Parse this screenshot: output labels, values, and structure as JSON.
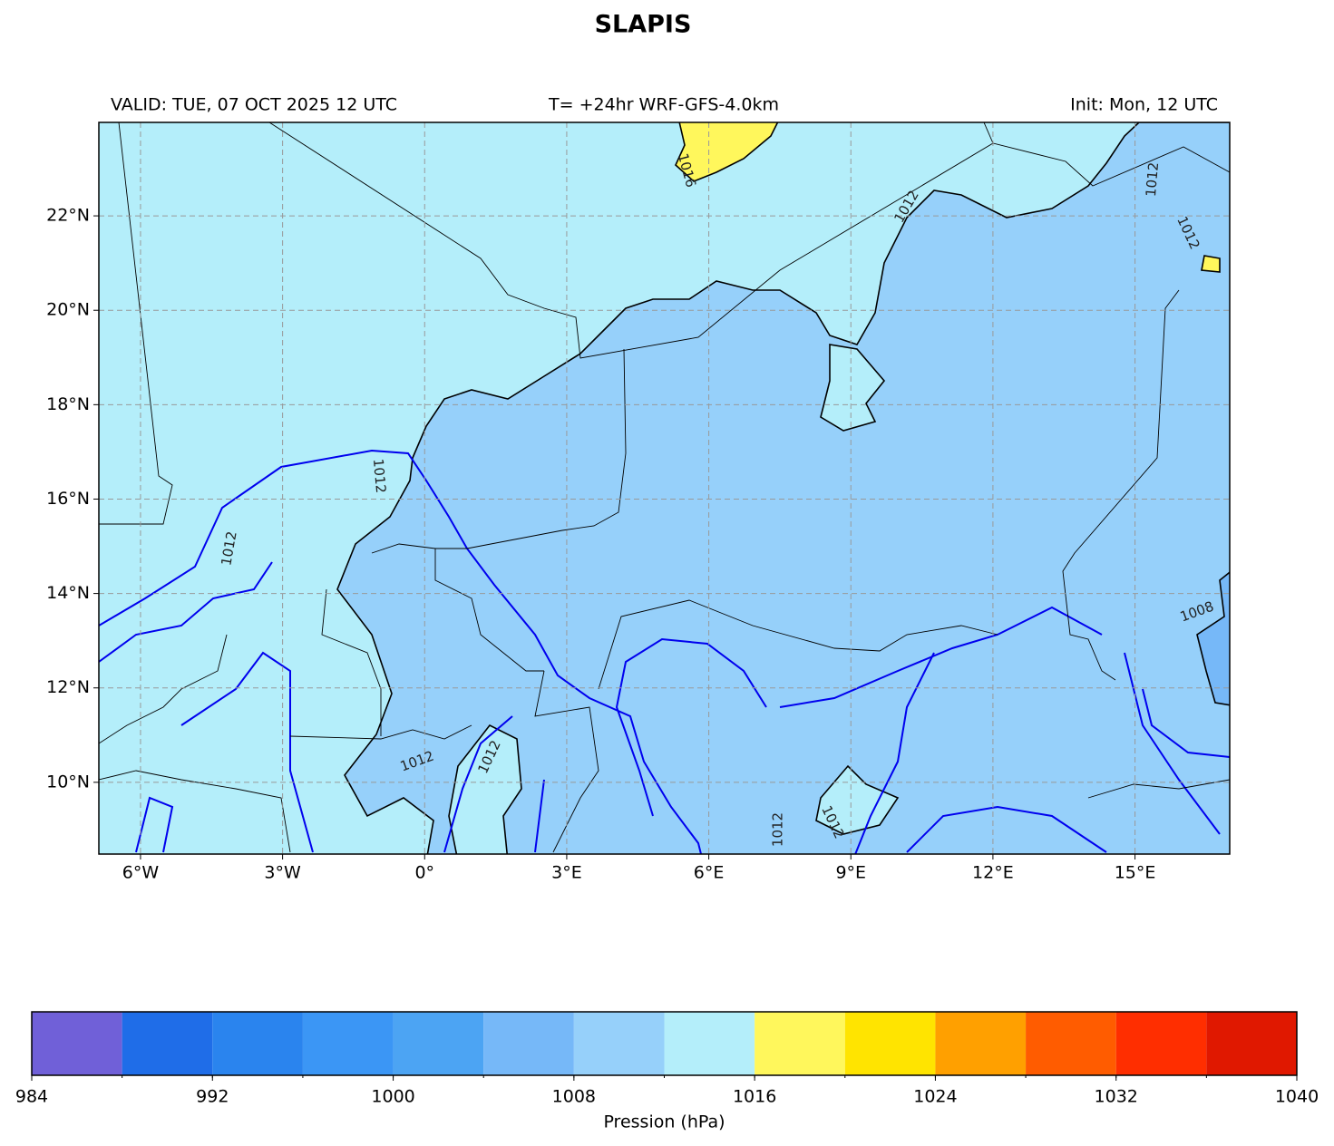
{
  "chart_data": {
    "type": "filled-contour-map",
    "title": "SLAPIS",
    "valid_label": "VALID: TUE, 07 OCT 2025 12 UTC",
    "run_label": "T= +24hr WRF-GFS-4.0km",
    "init_label": "Init: Mon, 12 UTC",
    "xlim": [
      -6.88,
      17.0
    ],
    "ylim": [
      8.48,
      23.98
    ],
    "xticks": [
      {
        "value": -6,
        "label": "6°W"
      },
      {
        "value": -3,
        "label": "3°W"
      },
      {
        "value": 0,
        "label": "0°"
      },
      {
        "value": 3,
        "label": "3°E"
      },
      {
        "value": 6,
        "label": "6°E"
      },
      {
        "value": 9,
        "label": "9°E"
      },
      {
        "value": 12,
        "label": "12°E"
      },
      {
        "value": 15,
        "label": "15°E"
      }
    ],
    "yticks": [
      {
        "value": 10,
        "label": "10°N"
      },
      {
        "value": 12,
        "label": "12°N"
      },
      {
        "value": 14,
        "label": "14°N"
      },
      {
        "value": 16,
        "label": "16°N"
      },
      {
        "value": 18,
        "label": "18°N"
      },
      {
        "value": 20,
        "label": "20°N"
      },
      {
        "value": 22,
        "label": "22°N"
      }
    ],
    "grid": true,
    "contour_labels": [
      "1016",
      "1012",
      "1012",
      "1012",
      "1012",
      "1012",
      "1012",
      "1012",
      "1012",
      "1008",
      "1012"
    ],
    "colorbar": {
      "label": "Pression (hPa)",
      "levels": [
        984,
        988,
        992,
        996,
        1000,
        1004,
        1008,
        1012,
        1016,
        1020,
        1024,
        1028,
        1032,
        1036,
        1040
      ],
      "colors": [
        "#7060d8",
        "#1f6de8",
        "#2a84ee",
        "#3b96f5",
        "#4ca4f3",
        "#76b8f8",
        "#96d0fa",
        "#b4eefa",
        "#fff75c",
        "#ffe400",
        "#ffa000",
        "#ff5c00",
        "#ff2e00",
        "#e01800"
      ],
      "ticks": [
        984,
        992,
        1000,
        1008,
        1016,
        1024,
        1032,
        1040
      ]
    }
  }
}
